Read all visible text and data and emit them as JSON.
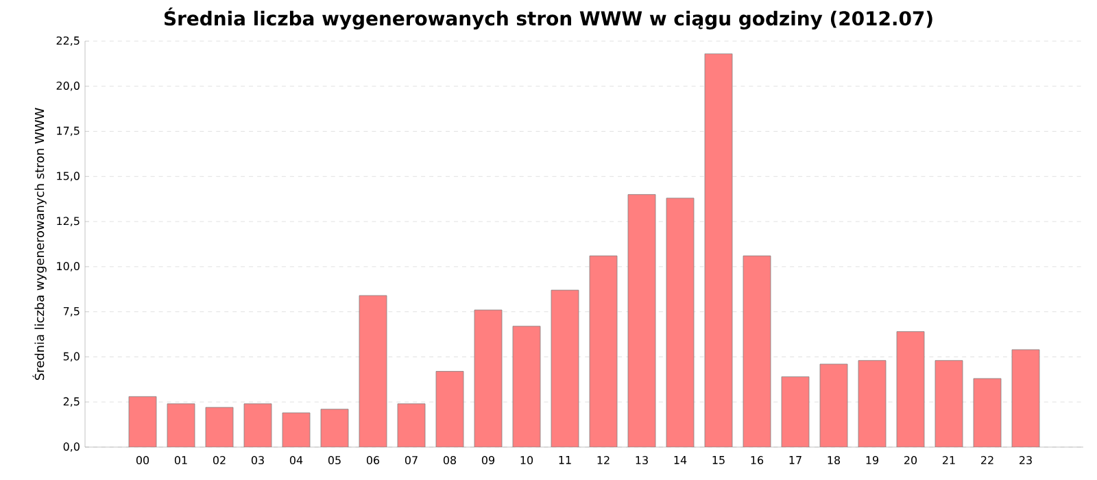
{
  "chart_data": {
    "type": "bar",
    "title": "Średnia liczba wygenerowanych stron WWW w ciągu godziny (2012.07)",
    "ylabel": "Średnia liczba wygenerowanych stron WWW",
    "categories": [
      "00",
      "01",
      "02",
      "03",
      "04",
      "05",
      "06",
      "07",
      "08",
      "09",
      "10",
      "11",
      "12",
      "13",
      "14",
      "15",
      "16",
      "17",
      "18",
      "19",
      "20",
      "21",
      "22",
      "23"
    ],
    "values": [
      2.8,
      2.4,
      2.2,
      2.4,
      1.9,
      2.1,
      8.4,
      2.4,
      4.2,
      7.6,
      6.7,
      8.7,
      10.6,
      14.0,
      13.8,
      21.8,
      10.6,
      3.9,
      4.6,
      4.8,
      6.4,
      4.8,
      3.8,
      5.4
    ],
    "color": "#ff7f7f",
    "ylim": [
      0,
      22.5
    ],
    "yticks": [
      {
        "value": 0,
        "label": "0,0"
      },
      {
        "value": 2.5,
        "label": "2,5"
      },
      {
        "value": 5,
        "label": "5,0"
      },
      {
        "value": 7.5,
        "label": "7,5"
      },
      {
        "value": 10,
        "label": "10,0"
      },
      {
        "value": 12.5,
        "label": "12,5"
      },
      {
        "value": 15,
        "label": "15,0"
      },
      {
        "value": 17.5,
        "label": "17,5"
      },
      {
        "value": 20,
        "label": "20,0"
      },
      {
        "value": 22.5,
        "label": "22,5"
      }
    ],
    "grid": "y"
  }
}
